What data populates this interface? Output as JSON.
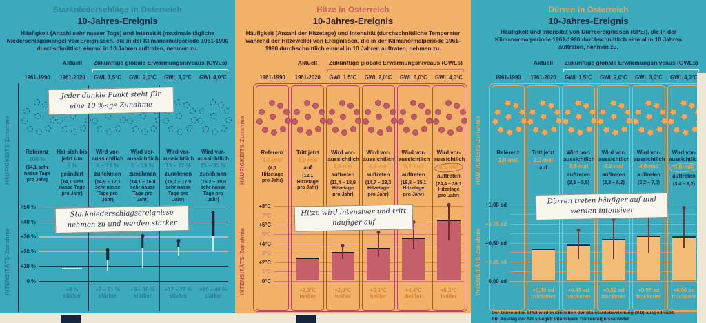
{
  "colors": {
    "teal_background": "#3aaabc",
    "orange_background": "#f1b168",
    "navy_text": "#16243e",
    "heat_accent": "#c0505f",
    "drought_accent": "#f2a55c",
    "heat_bar": "#c5606b",
    "drought_bar": "#f4bd77",
    "grid_highlight_pink": "#eaa39b",
    "page_edge_cream": "#efe7d6"
  },
  "panels": [
    {
      "id": "starkniederschlaege",
      "title": "Starkniederschläge in Österreich",
      "subtitle": "10-Jahres-Ereignis",
      "description": "Häufigkeit (Anzahl sehr nasser Tage) und Intensität (maximale tägliche Niederschlagsmenge) von Ereignissen, die in der Klimanormalperiode 1961-1990 durchschnittlich einmal in 10 Jahren auftraten, nehmen zu.",
      "header_current": "Aktuell",
      "header_future": "Zukünftige globale Erwärmungsniveaus (GWLs)",
      "col_headers": [
        "1961-1990",
        "1961-2020",
        "GWL 1,5°C",
        "GWL 2,0°C",
        "GWL 3,0°C",
        "GWL 4,0°C"
      ],
      "side_label_top": "HÄUFIGKEITS-Zunahme",
      "side_label_bottom": "INTENSITÄTS-Zunahme",
      "notes": [
        "Jeder dunkle Punkt steht für eine 10 %-ige Zunahme",
        "Starkniederschlagsereignisse nehmen zu und werden stärker"
      ],
      "columns": [
        {
          "statement": [
            "Referenz"
          ],
          "value": "100 %",
          "statement_after": [],
          "detail": "(14,1 sehr nasse Tage pro Jahr)"
        },
        {
          "statement": [
            "Hat sich bis",
            "jetzt um"
          ],
          "value": "0 %",
          "statement_after": [
            "geändert"
          ],
          "detail": "(14,1 sehr nasse Tage pro Jahr)"
        },
        {
          "statement": [
            "Wird vor-",
            "aussichtlich"
          ],
          "value": "6 – 21 %",
          "statement_after": [
            "zunehmen"
          ],
          "detail": "(14,9 – 17,1 sehr nasse Tage pro Jahr)"
        },
        {
          "statement": [
            "Wird vor-",
            "aussichtlich"
          ],
          "value": "0 – 19 %",
          "statement_after": [
            "zunehmen"
          ],
          "detail": "(14,1 – 16,8 sehr nasse Tage pro Jahr)"
        },
        {
          "statement": [
            "Wird vor-",
            "aussichtlich"
          ],
          "value": "13 – 27 %",
          "statement_after": [
            "zunehmen"
          ],
          "detail": "(16,0 – 17,9 sehr nasse Tage pro Jahr)"
        },
        {
          "statement": [
            "Wird vor-",
            "aussichtlich"
          ],
          "value": "15 – 35 %",
          "statement_after": [
            "zunehmen"
          ],
          "detail": "(16,2 – 19,0 sehr nasse Tage pro Jahr)"
        }
      ]
    },
    {
      "id": "hitze",
      "title": "Hitze in Österreich",
      "subtitle": "10-Jahres-Ereignis",
      "description": "Häufigkeit (Anzahl der Hitzetage) und Intensität (durchschnittliche Temperatur während der Hitzewelle) von Ereignissen, die in der Klimanormalperiode 1961-1990 durchschnittlich einmal in 10 Jahren auftraten, nehmen zu.",
      "header_current": "Aktuell",
      "header_future": "Zukünftige globale Erwärmungsniveaus (GWLs)",
      "col_headers": [
        "1961-1990",
        "1961-2020",
        "GWL 1,5°C",
        "GWL 2,0°C",
        "GWL 3,0°C",
        "GWL 4,0°C"
      ],
      "side_label_top": "HÄUFIGKEITS-Zunahme",
      "side_label_bottom": "INTENSITÄTS-Zunahme",
      "notes": [
        "Hitze wird intensiver und tritt häufiger auf"
      ],
      "columns": [
        {
          "statement": [
            "Referenz"
          ],
          "value": "1,0-mal",
          "statement_after": [],
          "detail": "(4,1 Hitzetage pro Jahr)"
        },
        {
          "statement": [
            "Tritt jetzt"
          ],
          "value": "3,0-mal",
          "statement_after": [
            "auf"
          ],
          "detail": "(12,1 Hitzetage pro Jahr)"
        },
        {
          "statement": [
            "Wird vor-",
            "aussichtlich"
          ],
          "value": "3,5-mal",
          "statement_after": [
            "auftreten"
          ],
          "detail": "(11,4 – 18,9 Hitzetage pro Jahr)"
        },
        {
          "statement": [
            "Wird vor-",
            "aussichtlich"
          ],
          "value": "4,3-mal",
          "statement_after": [
            "auftreten"
          ],
          "detail": "(14,7 – 23,3 Hitzetage pro Jahr)"
        },
        {
          "statement": [
            "Wird vor-",
            "aussichtlich"
          ],
          "value": "5,7-mal",
          "statement_after": [
            "auftreten"
          ],
          "detail": "(16,8 – 35,1 Hitzetage pro Jahr)"
        },
        {
          "statement": [
            "Wird vor-",
            "aussichtlich"
          ],
          "value": "8,1-mal",
          "circled": true,
          "statement_after": [
            "auftreten"
          ],
          "detail": "(24,4 – 39,1 Hitzetage pro Jahr)"
        }
      ]
    },
    {
      "id": "duerren",
      "title": "Dürren in Österreich",
      "subtitle": "10-Jahres-Ereignis",
      "description": "Häufigkeit und Intensität von Dürreereignissen (SPEI), die in der Klimanormalperiode 1961-1990 durchschnittlich einmal in 10 Jahren auftraten, nehmen zu.",
      "header_current": "Aktuell",
      "header_future": "Zukünftige globale Erwärmungsniveaus (GWLs)",
      "col_headers": [
        "1961-1990",
        "1961-2020",
        "GWL 1,5°C",
        "GWL 2,0°C",
        "GWL 3,0°C",
        "GWL 4,0°C"
      ],
      "side_label_top": "HÄUFIGKEITS-Zunahme",
      "side_label_bottom": "INTENSITÄTS-Zunahme",
      "notes": [
        "Dürren treten häufiger auf und werden intensiver"
      ],
      "footnote_line1": "Der Dürreindex SPEI wird in Einheiten der Standardabweichung (SD) ausgedrückt.",
      "footnote_line2": "Ein Anstieg der SD spiegelt intensivere Dürreereignisse wider.",
      "columns": [
        {
          "statement": [
            "Referenz"
          ],
          "value": "1,0-mal",
          "statement_after": [],
          "detail": ""
        },
        {
          "statement": [
            "Tritt jetzt"
          ],
          "value": "2,3-mal",
          "statement_after": [
            "auf"
          ],
          "detail": ""
        },
        {
          "statement": [
            "Wird vor-",
            "aussichtlich"
          ],
          "value": "3,5-mal",
          "statement_after": [
            "auftreten"
          ],
          "detail": "(2,3 – 5,5)"
        },
        {
          "statement": [
            "Wird vor-",
            "aussichtlich"
          ],
          "value": "4,2-mal",
          "statement_after": [
            "auftreten"
          ],
          "detail": "(2,3 – 6,2)"
        },
        {
          "statement": [
            "Wird vor-",
            "aussichtlich"
          ],
          "value": "4,6-mal",
          "statement_after": [
            "auftreten"
          ],
          "detail": "(3,2 – 7,0)"
        },
        {
          "statement": [
            "Wird vor-",
            "aussichtlich"
          ],
          "value": "5,0-mal",
          "circled": true,
          "statement_after": [
            "auftreten"
          ],
          "detail": "(3,4 – 8,2)"
        }
      ]
    }
  ],
  "chart_data": [
    {
      "panel": "starkniederschlaege",
      "type": "scatter",
      "title": "Intensitäts-Zunahme von Starkniederschlägen (% stärker)",
      "categories": [
        "1961-1990",
        "1961-2020",
        "GWL 1,5°C",
        "GWL 2,0°C",
        "GWL 3,0°C",
        "GWL 4,0°C"
      ],
      "ylabel": "INTENSITÄTS-Zunahme",
      "ylim": [
        0,
        50
      ],
      "grid_values": [
        0,
        10,
        20,
        30,
        40,
        50
      ],
      "grid_highlight": [
        20,
        30
      ],
      "ticks": [
        {
          "v": 50,
          "label": "+50 %",
          "strong": true
        },
        {
          "v": 40,
          "label": "+40 %",
          "strong": true
        },
        {
          "v": 30,
          "label": "+30 %",
          "strong": true
        },
        {
          "v": 20,
          "label": "+20 %",
          "strong": true
        },
        {
          "v": 10,
          "label": "+10 %",
          "strong": true
        },
        {
          "v": 0,
          "label": "0 %",
          "strong": true
        }
      ],
      "items": [
        {
          "kind": "none"
        },
        {
          "kind": "dash",
          "value": 8,
          "label": "+8 %",
          "label2": "stärker"
        },
        {
          "kind": "whisker",
          "low": 7,
          "dark_from": 14,
          "high": 21,
          "label": "+7 – 21 %",
          "label2": "stärker"
        },
        {
          "kind": "whisker",
          "low": 9,
          "dark_from": 22,
          "high": 30,
          "label": "+9 – 30 %",
          "label2": "stärker"
        },
        {
          "kind": "whisker",
          "low": 17,
          "dark_from": 23,
          "high": 27,
          "label": "+17 – 27 %",
          "label2": "stärker"
        },
        {
          "kind": "whisker",
          "low": 20,
          "dark_from": 30,
          "high": 46,
          "label": "+20 – 46 %",
          "label2": "stärker"
        }
      ]
    },
    {
      "panel": "hitze",
      "type": "bar",
      "title": "Intensitäts-Zunahme von Hitzewellen (°C heißer)",
      "categories": [
        "1961-1990",
        "1961-2020",
        "GWL 1,5°C",
        "GWL 2,0°C",
        "GWL 3,0°C",
        "GWL 4,0°C"
      ],
      "ylabel": "INTENSITÄTS-Zunahme",
      "ylim": [
        0,
        8
      ],
      "grid_values": [
        0,
        1,
        2,
        3,
        4,
        5,
        6,
        7,
        8
      ],
      "ticks": [
        {
          "v": 8,
          "label": "+8°C",
          "strong": true
        },
        {
          "v": 7,
          "label": "7°C",
          "strong": false
        },
        {
          "v": 6,
          "label": "+6°C",
          "strong": true
        },
        {
          "v": 5,
          "label": "5°C",
          "strong": false
        },
        {
          "v": 4,
          "label": "+4°C",
          "strong": true
        },
        {
          "v": 3,
          "label": "3°C",
          "strong": false
        },
        {
          "v": 2,
          "label": "+2°C",
          "strong": true
        },
        {
          "v": 1,
          "label": "1°C",
          "strong": false
        },
        {
          "v": 0,
          "label": "0°C",
          "strong": true
        }
      ],
      "items": [
        {
          "kind": "none"
        },
        {
          "kind": "bar",
          "value": 2.3,
          "label": "+2,3°C",
          "label2": "heißer"
        },
        {
          "kind": "bar",
          "value": 2.9,
          "low": 2.3,
          "high": 3.7,
          "label": "+2,9°C",
          "label2": "heißer"
        },
        {
          "kind": "bar",
          "value": 3.3,
          "low": 2.5,
          "high": 5.1,
          "label": "+3,3°C",
          "label2": "heißer"
        },
        {
          "kind": "bar",
          "value": 4.4,
          "low": 3.3,
          "high": 6.2,
          "label": "+4,4°C",
          "label2": "heißer"
        },
        {
          "kind": "bar",
          "value": 6.3,
          "low": 4.3,
          "high": 8.0,
          "label": "+6,3°C",
          "label2": "heißer"
        }
      ]
    },
    {
      "panel": "duerren",
      "type": "bar",
      "title": "Intensitäts-Zunahme von Dürren (SPEI, sd trockener)",
      "categories": [
        "1961-1990",
        "1961-2020",
        "GWL 1,5°C",
        "GWL 2,0°C",
        "GWL 3,0°C",
        "GWL 4,0°C"
      ],
      "ylabel": "INTENSITÄTS-Zunahme",
      "ylim": [
        0,
        1.0
      ],
      "grid_values": [
        0,
        0.125,
        0.25,
        0.375,
        0.5,
        0.625,
        0.75,
        0.875,
        1.0
      ],
      "ticks": [
        {
          "v": 1.0,
          "label": "+1,00 sd",
          "strong": true
        },
        {
          "v": 0.75,
          "label": "+0,75 sd",
          "strong": false
        },
        {
          "v": 0.5,
          "label": "+0,50 sd",
          "strong": true
        },
        {
          "v": 0.25,
          "label": "+0,25 sd",
          "strong": false
        },
        {
          "v": 0,
          "label": "0,00 sd",
          "strong": true
        }
      ],
      "items": [
        {
          "kind": "none"
        },
        {
          "kind": "bar",
          "value": 0.4,
          "label": "+0,40 sd",
          "label2": "trockener"
        },
        {
          "kind": "bar",
          "value": 0.45,
          "low": 0.28,
          "high": 0.65,
          "label": "+0,45 sd",
          "label2": "trockener"
        },
        {
          "kind": "bar",
          "value": 0.52,
          "low": 0.28,
          "high": 0.79,
          "label": "+0,52 sd",
          "label2": "trockener"
        },
        {
          "kind": "bar",
          "value": 0.57,
          "low": 0.35,
          "high": 0.93,
          "label": "+0,57 sd",
          "label2": "trockener"
        },
        {
          "kind": "bar",
          "value": 0.56,
          "low": 0.42,
          "high": 0.95,
          "label": "+0,56 sd",
          "label2": "trockener"
        }
      ]
    }
  ]
}
